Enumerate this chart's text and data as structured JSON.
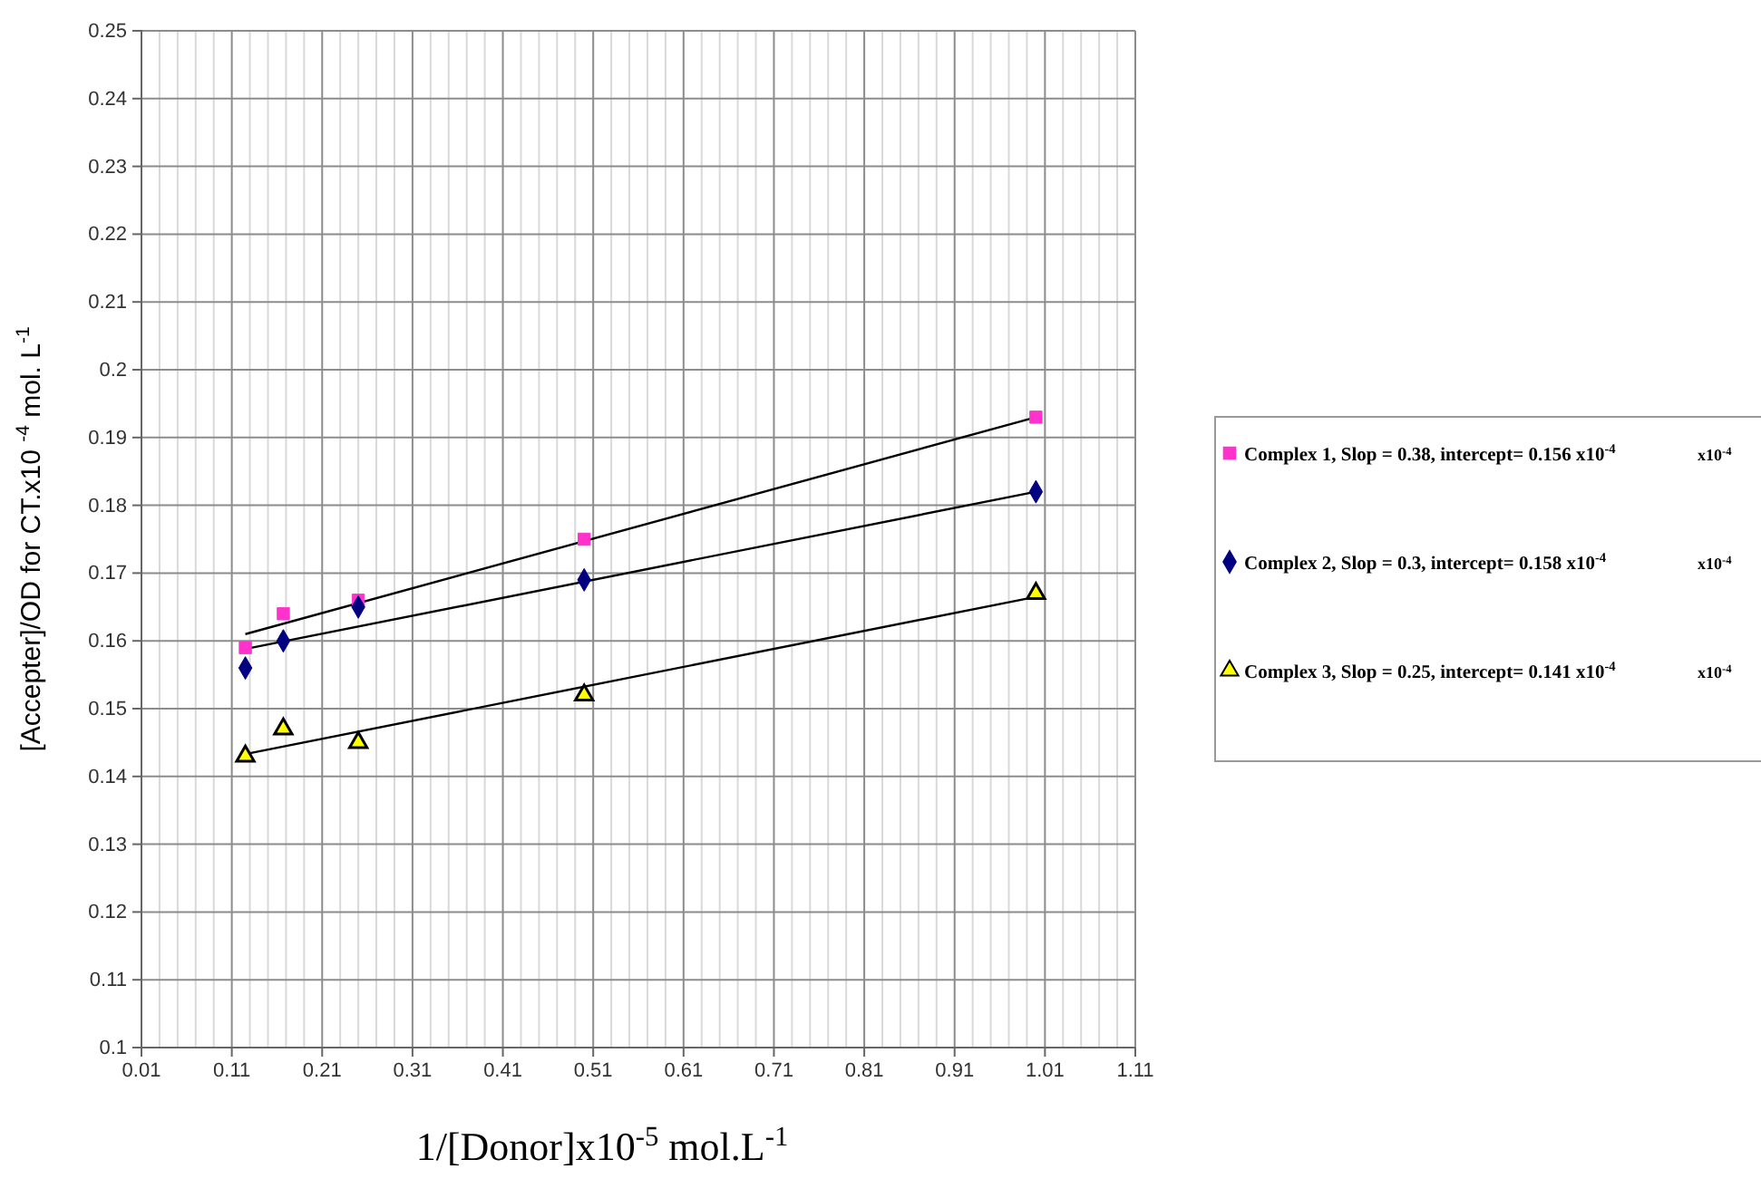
{
  "chart_data": {
    "type": "scatter",
    "xlabel": "1/[Donor]x10$^{-5}$ mol.L$^{-1}$",
    "ylabel": "[Accepter]/OD for CT.x10 $^{-4}$ mol.  L$^{-1}$",
    "xlim": [
      0.01,
      1.11
    ],
    "ylim": [
      0.1,
      0.25
    ],
    "xticks": [
      0.01,
      {
        "value": 0.03,
        "label": null
      },
      {
        "value": 0.05,
        "label": null
      },
      {
        "value": 0.07,
        "label": null
      },
      {
        "value": 0.09,
        "label": null
      },
      0.11,
      {
        "value": 0.13,
        "label": null
      },
      {
        "value": 0.15,
        "label": null
      },
      {
        "value": 0.17,
        "label": null
      },
      {
        "value": 0.19,
        "label": null
      },
      0.21,
      {
        "value": 0.23,
        "label": null
      },
      {
        "value": 0.25,
        "label": null
      },
      {
        "value": 0.27,
        "label": null
      },
      {
        "value": 0.29,
        "label": null
      },
      0.31,
      {
        "value": 0.33,
        "label": null
      },
      {
        "value": 0.35,
        "label": null
      },
      {
        "value": 0.37,
        "label": null
      },
      {
        "value": 0.39,
        "label": null
      },
      0.41,
      {
        "value": 0.43,
        "label": null
      },
      {
        "value": 0.45,
        "label": null
      },
      {
        "value": 0.47,
        "label": null
      },
      {
        "value": 0.49,
        "label": null
      },
      0.51,
      {
        "value": 0.53,
        "label": null
      },
      {
        "value": 0.55,
        "label": null
      },
      {
        "value": 0.57,
        "label": null
      },
      {
        "value": 0.59,
        "label": null
      },
      0.61,
      {
        "value": 0.63,
        "label": null
      },
      {
        "value": 0.65,
        "label": null
      },
      {
        "value": 0.67,
        "label": null
      },
      {
        "value": 0.69,
        "label": null
      },
      0.71,
      {
        "value": 0.73,
        "label": null
      },
      {
        "value": 0.75,
        "label": null
      },
      {
        "value": 0.77,
        "label": null
      },
      {
        "value": 0.79,
        "label": null
      },
      0.81,
      {
        "value": 0.83,
        "label": null
      },
      {
        "value": 0.85,
        "label": null
      },
      {
        "value": 0.87,
        "label": null
      },
      {
        "value": 0.89,
        "label": null
      },
      0.91,
      {
        "value": 0.93,
        "label": null
      },
      {
        "value": 0.95,
        "label": null
      },
      {
        "value": 0.97,
        "label": null
      },
      {
        "value": 0.99,
        "label": null
      },
      1.01,
      {
        "value": 1.03,
        "label": null
      },
      {
        "value": 1.05,
        "label": null
      },
      {
        "value": 1.07,
        "label": null
      },
      {
        "value": 1.09,
        "label": null
      },
      1.11
    ],
    "yticks": [
      0.1,
      0.11,
      0.12,
      0.13,
      0.14,
      0.15,
      0.16,
      0.17,
      0.18,
      0.19,
      0.2,
      0.21,
      0.22,
      0.23,
      0.24,
      0.25
    ],
    "grid": true,
    "legend": "right",
    "series": [
      {
        "name": "Complex 1, Slop = 0.38, intercept= 0.156 x10$^{-4}$",
        "marker": "square",
        "color": "#ff33cc",
        "x": [
          0.125,
          0.167,
          0.25,
          0.5,
          1.0
        ],
        "values": [
          0.159,
          0.164,
          0.166,
          0.175,
          0.193
        ]
      },
      {
        "name": "Complex 2, Slop = 0.3, intercept= 0.158 x10$^{-4}$",
        "marker": "diamond",
        "color": "#000080",
        "x": [
          0.125,
          0.167,
          0.25,
          0.5,
          1.0
        ],
        "values": [
          0.156,
          0.16,
          0.165,
          0.169,
          0.182
        ]
      },
      {
        "name": "Complex 3, Slop = 0.25, intercept= 0.141 x10$^{-4}$",
        "marker": "triangle",
        "color": "#ffff00",
        "x": [
          0.125,
          0.167,
          0.25,
          0.5,
          1.0
        ],
        "values": [
          0.143,
          0.147,
          0.145,
          0.152,
          0.167
        ]
      },
      {
        "type": "line",
        "marker": "none",
        "color": "#000000",
        "x": [
          0.125,
          1.0
        ],
        "values": [
          0.161,
          0.193
        ]
      },
      {
        "type": "line",
        "marker": "none",
        "color": "#000000",
        "x": [
          0.125,
          1.0
        ],
        "values": [
          0.1588,
          0.182
        ]
      },
      {
        "type": "line",
        "marker": "none",
        "color": "#000000",
        "x": [
          0.125,
          1.0
        ],
        "values": [
          0.1433,
          0.1665
        ]
      }
    ],
    "annotations": [
      "x10$^{-4}$",
      "x10$^{-4}$",
      "x10$^{-4}$"
    ]
  }
}
